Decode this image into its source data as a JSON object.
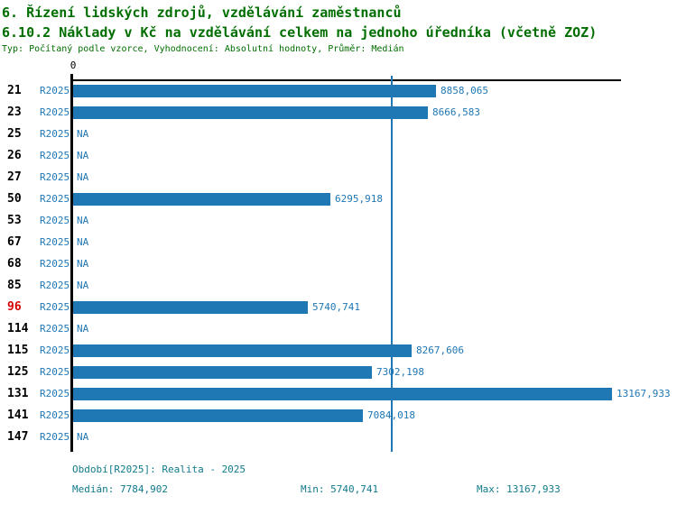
{
  "header": {
    "title1": "6. Řízení lidských zdrojů, vzdělávání zaměstnanců",
    "title2": "6.10.2 Náklady v Kč na vzdělávání celkem na jednoho úředníka (včetně ZOZ)",
    "subtitle": "Typ: Počítaný podle vzorce, Vyhodnocení: Absolutní hodnoty, Průměr: Medián"
  },
  "colors": {
    "title_green": "#006e00",
    "bar_blue": "#1f77b4",
    "highlight_red": "#d40000",
    "footer_teal": "#117a8b",
    "axis_black": "#000000"
  },
  "chart_data": {
    "type": "bar",
    "orientation": "horizontal",
    "axis_zero_label": "0",
    "series_label": "R2025",
    "na_label": "NA",
    "median_value": 7784.902,
    "xlim": [
      0,
      13400
    ],
    "rows": [
      {
        "id": "21",
        "value": 8858.065,
        "value_label": "8858,065",
        "highlight": false
      },
      {
        "id": "23",
        "value": 8666.583,
        "value_label": "8666,583",
        "highlight": false
      },
      {
        "id": "25",
        "value": null,
        "value_label": "NA",
        "highlight": false
      },
      {
        "id": "26",
        "value": null,
        "value_label": "NA",
        "highlight": false
      },
      {
        "id": "27",
        "value": null,
        "value_label": "NA",
        "highlight": false
      },
      {
        "id": "50",
        "value": 6295.918,
        "value_label": "6295,918",
        "highlight": false
      },
      {
        "id": "53",
        "value": null,
        "value_label": "NA",
        "highlight": false
      },
      {
        "id": "67",
        "value": null,
        "value_label": "NA",
        "highlight": false
      },
      {
        "id": "68",
        "value": null,
        "value_label": "NA",
        "highlight": false
      },
      {
        "id": "85",
        "value": null,
        "value_label": "NA",
        "highlight": false
      },
      {
        "id": "96",
        "value": 5740.741,
        "value_label": "5740,741",
        "highlight": true
      },
      {
        "id": "114",
        "value": null,
        "value_label": "NA",
        "highlight": false
      },
      {
        "id": "115",
        "value": 8267.606,
        "value_label": "8267,606",
        "highlight": false
      },
      {
        "id": "125",
        "value": 7302.198,
        "value_label": "7302,198",
        "highlight": false
      },
      {
        "id": "131",
        "value": 13167.933,
        "value_label": "13167,933",
        "highlight": false
      },
      {
        "id": "141",
        "value": 7084.018,
        "value_label": "7084,018",
        "highlight": false
      },
      {
        "id": "147",
        "value": null,
        "value_label": "NA",
        "highlight": false
      }
    ]
  },
  "footer": {
    "period": "Období[R2025]: Realita - 2025",
    "median": "Medián: 7784,902",
    "min": "Min: 5740,741",
    "max": "Max: 13167,933"
  }
}
